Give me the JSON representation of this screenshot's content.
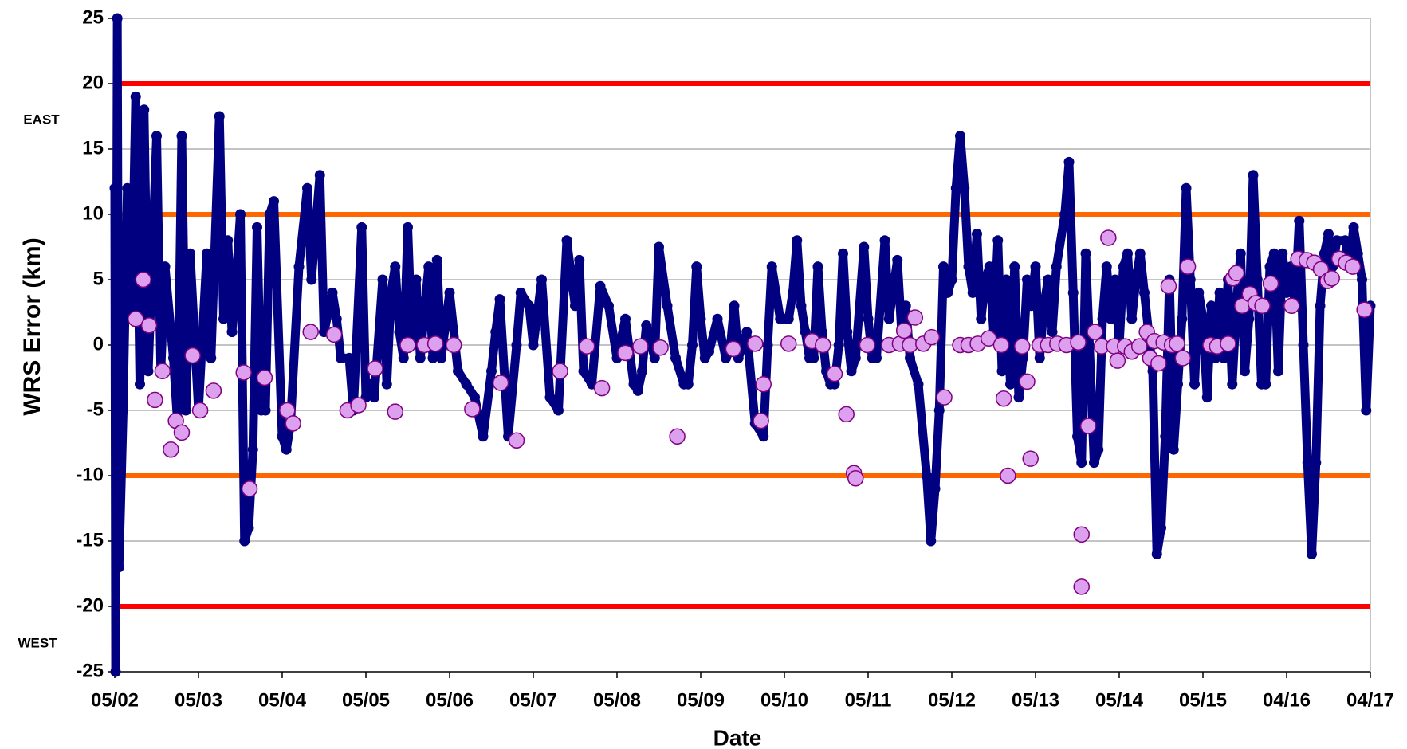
{
  "chart_data": {
    "type": "scatter",
    "x_label": "Date",
    "y_label": "WRS Error (km)",
    "annotations": [
      "EAST",
      "WEST"
    ],
    "xlim": [
      0,
      15
    ],
    "ylim": [
      -25,
      25
    ],
    "xticks": [
      {
        "value": 0,
        "label": "05/02"
      },
      {
        "value": 1,
        "label": "05/03"
      },
      {
        "value": 2,
        "label": "05/04"
      },
      {
        "value": 3,
        "label": "05/05"
      },
      {
        "value": 4,
        "label": "05/06"
      },
      {
        "value": 5,
        "label": "05/07"
      },
      {
        "value": 6,
        "label": "05/08"
      },
      {
        "value": 7,
        "label": "05/09"
      },
      {
        "value": 8,
        "label": "05/10"
      },
      {
        "value": 9,
        "label": "05/11"
      },
      {
        "value": 10,
        "label": "05/12"
      },
      {
        "value": 11,
        "label": "05/13"
      },
      {
        "value": 12,
        "label": "05/14"
      },
      {
        "value": 13,
        "label": "05/15"
      },
      {
        "value": 14,
        "label": "04/16"
      },
      {
        "value": 15,
        "label": "04/17"
      }
    ],
    "yticks": [
      -25,
      -20,
      -15,
      -10,
      -5,
      0,
      5,
      10,
      15,
      20,
      25
    ],
    "grid": true,
    "reference_lines": [
      {
        "value": 20,
        "color": "#ff0000"
      },
      {
        "value": 10,
        "color": "#ff6600"
      },
      {
        "value": -10,
        "color": "#ff6600"
      },
      {
        "value": -20,
        "color": "#ff0000"
      }
    ],
    "series": [
      {
        "color": "#000080",
        "connected": true,
        "x": [
          0,
          0.01,
          0.03,
          0.05,
          0.1,
          0.15,
          0.2,
          0.25,
          0.3,
          0.35,
          0.4,
          0.5,
          0.55,
          0.6,
          0.7,
          0.75,
          0.8,
          0.85,
          0.9,
          1.0,
          1.1,
          1.15,
          1.25,
          1.3,
          1.35,
          1.4,
          1.45,
          1.5,
          1.55,
          1.6,
          1.65,
          1.7,
          1.75,
          1.8,
          1.85,
          1.9,
          2.0,
          2.05,
          2.1,
          2.2,
          2.3,
          2.35,
          2.45,
          2.5,
          2.6,
          2.65,
          2.7,
          2.8,
          2.85,
          2.95,
          3.0,
          3.05,
          3.1,
          3.2,
          3.25,
          3.3,
          3.35,
          3.4,
          3.45,
          3.5,
          3.55,
          3.6,
          3.65,
          3.75,
          3.8,
          3.85,
          3.9,
          4.0,
          4.1,
          4.2,
          4.3,
          4.4,
          4.5,
          4.55,
          4.6,
          4.7,
          4.8,
          4.85,
          4.95,
          5.0,
          5.1,
          5.2,
          5.3,
          5.4,
          5.5,
          5.55,
          5.6,
          5.7,
          5.8,
          5.9,
          6.0,
          6.1,
          6.2,
          6.25,
          6.3,
          6.35,
          6.45,
          6.5,
          6.6,
          6.7,
          6.8,
          6.85,
          6.9,
          6.95,
          7.0,
          7.05,
          7.1,
          7.2,
          7.3,
          7.35,
          7.4,
          7.45,
          7.55,
          7.65,
          7.75,
          7.8,
          7.85,
          7.95,
          8.0,
          8.05,
          8.1,
          8.15,
          8.2,
          8.25,
          8.3,
          8.35,
          8.4,
          8.45,
          8.5,
          8.55,
          8.6,
          8.65,
          8.7,
          8.75,
          8.8,
          8.85,
          8.95,
          9.0,
          9.05,
          9.1,
          9.2,
          9.25,
          9.35,
          9.4,
          9.45,
          9.5,
          9.6,
          9.7,
          9.75,
          9.8,
          9.85,
          9.9,
          9.95,
          10.0,
          10.05,
          10.1,
          10.15,
          10.2,
          10.25,
          10.3,
          10.35,
          10.4,
          10.45,
          10.5,
          10.55,
          10.6,
          10.65,
          10.7,
          10.75,
          10.8,
          10.85,
          10.9,
          10.95,
          11.0,
          11.05,
          11.1,
          11.15,
          11.2,
          11.25,
          11.35,
          11.4,
          11.45,
          11.5,
          11.55,
          11.6,
          11.7,
          11.75,
          11.8,
          11.85,
          11.9,
          11.95,
          12.0,
          12.05,
          12.1,
          12.15,
          12.2,
          12.25,
          12.3,
          12.4,
          12.45,
          12.5,
          12.55,
          12.6,
          12.65,
          12.7,
          12.75,
          12.8,
          12.85,
          12.9,
          12.95,
          13.0,
          13.05,
          13.1,
          13.15,
          13.2,
          13.25,
          13.3,
          13.35,
          13.4,
          13.45,
          13.5,
          13.55,
          13.6,
          13.65,
          13.7,
          13.75,
          13.8,
          13.85,
          13.9,
          13.95,
          14.0,
          14.05,
          14.1,
          14.15,
          14.2,
          14.25,
          14.3,
          14.35,
          14.4,
          14.45,
          14.5,
          14.55,
          14.6,
          14.7,
          14.75,
          14.8,
          14.85,
          14.9,
          14.95,
          15.0
        ],
        "values": [
          12,
          -25,
          25,
          -17,
          -5,
          12,
          2,
          19,
          -3,
          18,
          -2,
          16,
          -2,
          6,
          -1,
          -6,
          16,
          -5,
          7,
          -5,
          7,
          -1,
          17.5,
          2,
          8,
          1,
          5,
          10,
          -15,
          -14,
          -8,
          9,
          -5,
          -5,
          10,
          11,
          -7,
          -8,
          -6,
          6,
          12,
          5,
          13,
          1,
          4,
          2,
          -1,
          -1,
          -5,
          9,
          -4,
          -3,
          -4,
          5,
          -3,
          4,
          6,
          1,
          -1,
          9,
          0,
          5,
          -1,
          6,
          -1,
          6.5,
          -1,
          4,
          -2,
          -3,
          -4,
          -7,
          -2,
          1,
          3.5,
          -7,
          0,
          4,
          3,
          0,
          5,
          -4,
          -5,
          8,
          3,
          6.5,
          -2,
          -3,
          4.5,
          3,
          -1,
          2,
          -3,
          -3.5,
          -2,
          1.5,
          -1,
          7.5,
          3,
          -1,
          -3,
          -3,
          0,
          6,
          2,
          -1,
          -0.5,
          2,
          -1,
          -0.5,
          3,
          -1,
          1,
          -6,
          -7,
          0,
          6,
          2,
          2,
          2,
          4,
          8,
          3,
          1,
          -1,
          -1,
          6,
          1,
          -2,
          -3,
          -3,
          0,
          7,
          1,
          -2,
          -1,
          7.5,
          2,
          -1,
          -1,
          8,
          2,
          6.5,
          1,
          3,
          -1,
          -3,
          -10,
          -15,
          -11,
          -5,
          6,
          4,
          5,
          12,
          16,
          12,
          6,
          4,
          8.5,
          2,
          5,
          6,
          1,
          8,
          -2,
          5,
          -3,
          6,
          -4,
          -1,
          5,
          3,
          6,
          -1,
          3,
          5,
          1,
          6,
          10,
          14,
          4,
          -7,
          -9,
          7,
          -9,
          -8,
          2,
          6,
          2,
          5,
          0,
          6,
          7,
          2,
          5,
          7,
          4,
          -2,
          -16,
          -14,
          -7,
          5,
          -8,
          -3,
          2,
          12,
          5,
          -3,
          4,
          2,
          -4,
          3,
          -1,
          4,
          -1,
          5,
          -3,
          3,
          7,
          -2,
          2,
          13,
          5,
          -3,
          -3,
          6,
          7,
          -2,
          7,
          4,
          6,
          3,
          9.5,
          0,
          -9,
          -16,
          -9,
          3,
          7,
          8.5,
          6,
          8,
          8,
          6,
          9,
          7,
          5,
          -5,
          3
        ]
      },
      {
        "color": "#800080",
        "fill": "#dda0ee",
        "connected": false,
        "x": [
          0.25,
          0.34,
          0.41,
          0.48,
          0.57,
          0.67,
          0.73,
          0.8,
          0.93,
          1.02,
          1.18,
          1.54,
          1.61,
          1.79,
          2.06,
          2.13,
          2.34,
          2.62,
          2.78,
          2.91,
          3.11,
          3.35,
          3.5,
          3.7,
          3.83,
          4.05,
          4.27,
          4.61,
          4.8,
          5.32,
          5.64,
          5.82,
          6.1,
          6.28,
          6.52,
          6.72,
          7.39,
          7.65,
          7.72,
          7.75,
          8.05,
          8.33,
          8.46,
          8.6,
          8.74,
          8.83,
          8.85,
          8.99,
          9.25,
          9.38,
          9.43,
          9.5,
          9.56,
          9.66,
          9.76,
          9.91,
          10.1,
          10.2,
          10.31,
          10.44,
          10.59,
          10.62,
          10.67,
          10.84,
          10.9,
          10.94,
          11.05,
          11.15,
          11.26,
          11.37,
          11.51,
          11.55,
          11.55,
          11.63,
          11.71,
          11.79,
          11.87,
          11.94,
          11.98,
          12.07,
          12.15,
          12.24,
          12.33,
          12.37,
          12.42,
          12.47,
          12.53,
          12.59,
          12.63,
          12.69,
          12.76,
          12.82,
          13.09,
          13.17,
          13.3,
          13.36,
          13.4,
          13.47,
          13.56,
          13.63,
          13.71,
          13.81,
          14.06,
          14.14,
          14.24,
          14.33,
          14.41,
          14.49,
          14.54,
          14.63,
          14.71,
          14.79,
          14.93
        ],
        "values": [
          2,
          5,
          1.5,
          -4.2,
          -2,
          -8,
          -5.8,
          -6.7,
          -0.8,
          -5,
          -3.5,
          -2.1,
          -11,
          -2.5,
          -5,
          -6,
          1,
          0.8,
          -5,
          -4.6,
          -1.8,
          -5.1,
          0,
          0,
          0.1,
          0,
          -4.9,
          -2.9,
          -7.3,
          -2,
          -0.1,
          -3.3,
          -0.6,
          -0.1,
          -0.2,
          -7,
          -0.3,
          0.1,
          -5.8,
          -3,
          0.1,
          0.3,
          0,
          -2.2,
          -5.3,
          -9.8,
          -10.2,
          0,
          0,
          0.1,
          1.1,
          0,
          2.1,
          0.1,
          0.6,
          -4,
          0,
          0,
          0.1,
          0.5,
          0,
          -4.1,
          -10,
          -0.1,
          -2.8,
          -8.7,
          0,
          0,
          0.1,
          0,
          0.2,
          -14.5,
          -18.5,
          -6.2,
          1,
          -0.1,
          8.2,
          -0.1,
          -1.2,
          -0.1,
          -0.5,
          -0.1,
          1,
          -1,
          0.3,
          -1.4,
          0.2,
          4.5,
          0,
          0.1,
          -1,
          6,
          0,
          -0.1,
          0.1,
          5.1,
          5.5,
          3,
          3.9,
          3.2,
          3,
          4.7,
          3,
          6.6,
          6.5,
          6.3,
          5.8,
          4.9,
          5.1,
          6.6,
          6.3,
          6,
          2.7
        ]
      }
    ]
  }
}
